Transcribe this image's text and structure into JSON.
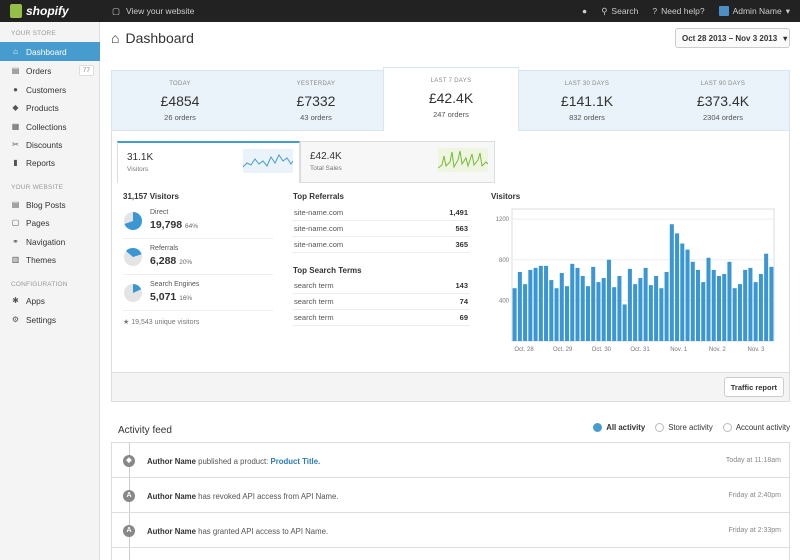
{
  "topbar": {
    "brand": "shopify",
    "view_site": "View your website",
    "search": "Search",
    "help": "Need help?",
    "user": "Admin Name"
  },
  "sidebar": {
    "sections": [
      "YOUR STORE",
      "YOUR WEBSITE",
      "CONFIGURATION"
    ],
    "store_items": [
      {
        "label": "Dashboard",
        "icon": "home-icon"
      },
      {
        "label": "Orders",
        "icon": "inbox-icon",
        "badge": "77"
      },
      {
        "label": "Customers",
        "icon": "user-icon"
      },
      {
        "label": "Products",
        "icon": "tag-icon"
      },
      {
        "label": "Collections",
        "icon": "folder-icon"
      },
      {
        "label": "Discounts",
        "icon": "scissors-icon"
      },
      {
        "label": "Reports",
        "icon": "bar-chart-icon"
      }
    ],
    "website_items": [
      {
        "label": "Blog Posts",
        "icon": "blog-icon"
      },
      {
        "label": "Pages",
        "icon": "page-icon"
      },
      {
        "label": "Navigation",
        "icon": "link-icon"
      },
      {
        "label": "Themes",
        "icon": "theme-icon"
      }
    ],
    "config_items": [
      {
        "label": "Apps",
        "icon": "apps-icon"
      },
      {
        "label": "Settings",
        "icon": "gear-icon"
      }
    ]
  },
  "header": {
    "title": "Dashboard",
    "date_range": "Oct 28 2013 – Nov 3 2013"
  },
  "stats": [
    {
      "label": "TODAY",
      "value": "£4854",
      "sub": "26 orders"
    },
    {
      "label": "YESTERDAY",
      "value": "£7332",
      "sub": "43 orders"
    },
    {
      "label": "LAST 7 DAYS",
      "value": "£42.4K",
      "sub": "247 orders"
    },
    {
      "label": "LAST 30 DAYS",
      "value": "£141.1K",
      "sub": "832 orders"
    },
    {
      "label": "LAST 90 DAYS",
      "value": "£373.4K",
      "sub": "2304 orders"
    }
  ],
  "metric_tabs": [
    {
      "value": "31.1K",
      "label": "Visitors"
    },
    {
      "value": "£42.4K",
      "label": "Total Sales"
    }
  ],
  "visitors_panel": {
    "total": "31,157 Visitors",
    "sources": [
      {
        "name": "Direct",
        "count": "19,798",
        "pct": "64%"
      },
      {
        "name": "Referrals",
        "count": "6,288",
        "pct": "20%"
      },
      {
        "name": "Search Engines",
        "count": "5,071",
        "pct": "16%"
      }
    ],
    "unique": "19,543 unique visitors"
  },
  "top_referrals": {
    "title": "Top Referrals",
    "rows": [
      {
        "name": "site-name.com",
        "count": "1,491"
      },
      {
        "name": "site-name.com",
        "count": "563"
      },
      {
        "name": "site-name.com",
        "count": "365"
      }
    ]
  },
  "top_search": {
    "title": "Top Search Terms",
    "rows": [
      {
        "name": "search term",
        "count": "143"
      },
      {
        "name": "search term",
        "count": "74"
      },
      {
        "name": "search term",
        "count": "69"
      }
    ]
  },
  "traffic_button": "Traffic report",
  "chart_data": {
    "type": "bar",
    "title": "Visitors",
    "ylim": [
      0,
      1300
    ],
    "yticks": [
      "1200",
      "800",
      "400"
    ],
    "xticks": [
      "Oct. 28",
      "Oct. 29",
      "Oct. 30",
      "Oct. 31",
      "Nov. 1",
      "Nov. 2",
      "Nov. 3"
    ],
    "values": [
      520,
      680,
      560,
      700,
      720,
      740,
      740,
      600,
      520,
      670,
      540,
      760,
      720,
      640,
      540,
      730,
      580,
      620,
      800,
      530,
      640,
      360,
      710,
      560,
      620,
      720,
      550,
      640,
      520,
      680,
      1150,
      1060,
      960,
      900,
      780,
      700,
      580,
      820,
      700,
      640,
      660,
      780,
      520,
      560,
      700,
      720,
      580,
      660,
      860,
      730
    ],
    "color": "#3a97d4"
  },
  "activity": {
    "title": "Activity feed",
    "filters": [
      "All activity",
      "Store activity",
      "Account activity"
    ],
    "items": [
      {
        "author": "Author Name",
        "action": "published a product:",
        "link": "Product Title.",
        "time": "Today at 11:18am",
        "icon": "tag-icon"
      },
      {
        "author": "Author Name",
        "action": "has revoked API access from API Name.",
        "link": "",
        "time": "Friday at 2:40pm",
        "icon": "api-icon"
      },
      {
        "author": "Author Name",
        "action": "has granted API access to API Name.",
        "link": "",
        "time": "Friday at 2:33pm",
        "icon": "api-icon"
      }
    ]
  }
}
